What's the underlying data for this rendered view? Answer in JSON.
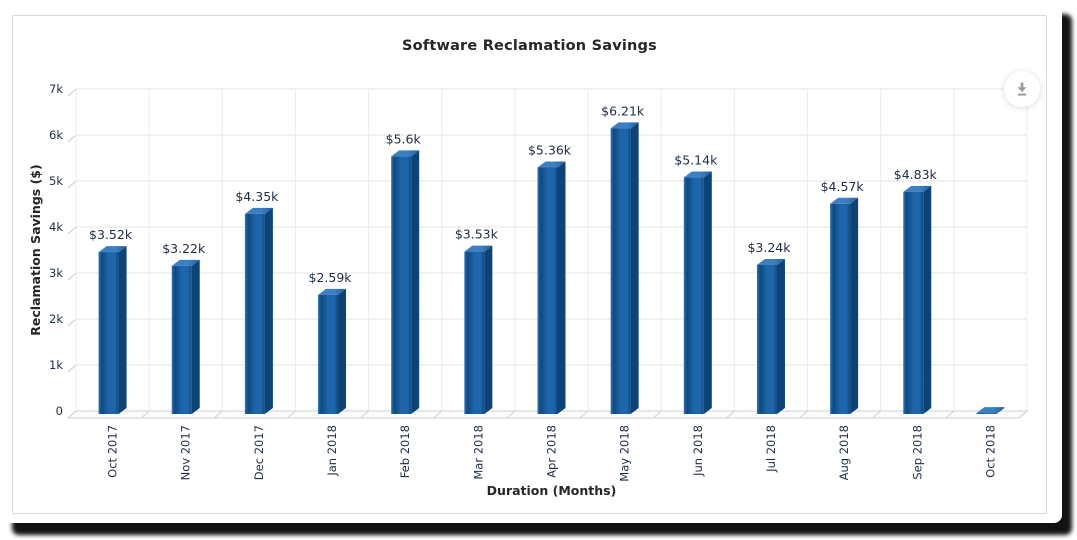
{
  "header": {
    "title": "Software Reclamation Savings"
  },
  "toolbar": {
    "export_icon": "download-icon"
  },
  "chart_data": {
    "type": "bar",
    "style": "3d-column",
    "title": "Software Reclamation Savings",
    "xlabel": "Duration (Months)",
    "ylabel": "Reclamation Savings ($)",
    "categories": [
      "Oct 2017",
      "Nov 2017",
      "Dec 2017",
      "Jan 2018",
      "Feb 2018",
      "Mar 2018",
      "Apr 2018",
      "May 2018",
      "Jun 2018",
      "Jul 2018",
      "Aug 2018",
      "Sep 2018",
      "Oct 2018"
    ],
    "values": [
      3520,
      3220,
      4350,
      2590,
      5600,
      3530,
      5360,
      6210,
      5140,
      3240,
      4570,
      4830,
      20
    ],
    "value_labels": [
      "$3.52k",
      "$3.22k",
      "$4.35k",
      "$2.59k",
      "$5.6k",
      "$3.53k",
      "$5.36k",
      "$6.21k",
      "$5.14k",
      "$3.24k",
      "$4.57k",
      "$4.83k",
      ""
    ],
    "ylim": [
      0,
      7000
    ],
    "ytick_values": [
      0,
      1000,
      2000,
      3000,
      4000,
      5000,
      6000,
      7000
    ],
    "ytick_labels": [
      "0",
      "1k",
      "2k",
      "3k",
      "4k",
      "5k",
      "6k",
      "7k"
    ],
    "grid": true,
    "legend": "none",
    "colors": {
      "bar_face_light": "#2e72b4",
      "bar_face_dark": "#10497f",
      "bar_face_mid": "#1e66ab",
      "bar_top": "#3c80c2",
      "bar_top_dark": "#205e9e",
      "bar_side": "#0e4377",
      "grid_line": "#e3e3e3",
      "axis_tick": "#c9c9c9",
      "floor_fill": "#fcfcfc",
      "floor_stroke": "#cfcfcf",
      "label_text": "#1f2d45",
      "title_text": "#262626",
      "icon_gray": "#9b9b9b"
    }
  }
}
